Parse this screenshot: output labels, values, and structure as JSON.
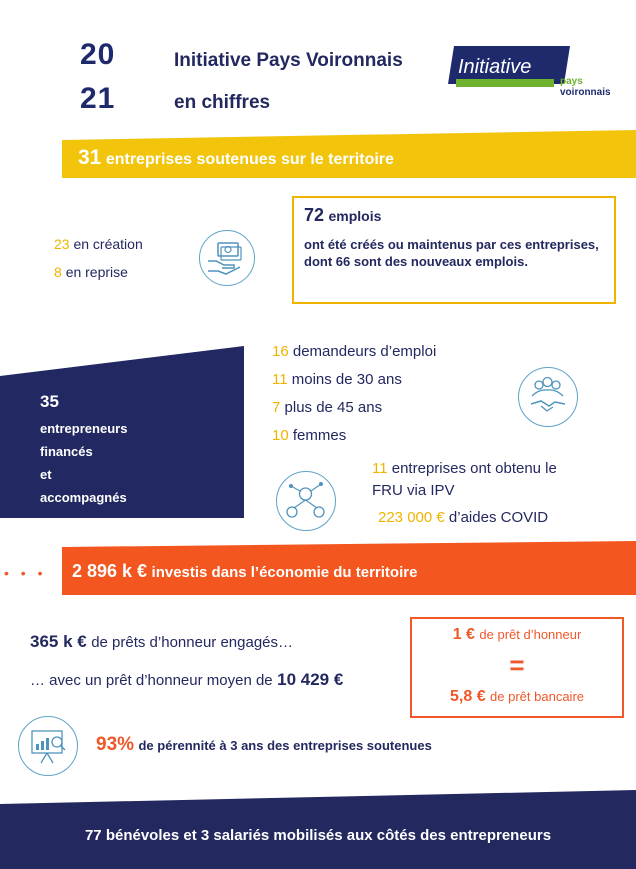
{
  "header": {
    "year_top": "20",
    "year_bottom": "21",
    "title_line1": "Initiative Pays Voironnais",
    "title_line2": "en chiffres"
  },
  "logo": {
    "word": "Initiative",
    "sub1": "pays",
    "sub2": "voironnais",
    "colors": {
      "navy": "#1f2a6d",
      "green": "#6eb22e"
    }
  },
  "banner1": {
    "value": "31",
    "text": "entreprises soutenues sur le territoire"
  },
  "creation": {
    "value": "23",
    "label": "en création"
  },
  "reprise": {
    "value": "8",
    "label": "en reprise"
  },
  "emplois": {
    "value": "72",
    "label": "emplois",
    "body": "ont été créés ou maintenus par ces entreprises, dont 66 sont des nouveaux emplois."
  },
  "entrepreneurs": {
    "value": "35",
    "line1": "entrepreneurs",
    "line2": "financés",
    "line3": "et",
    "line4": "accompagnés"
  },
  "stats": [
    {
      "value": "16",
      "label": "demandeurs d’emploi"
    },
    {
      "value": "11",
      "label": "moins de 30 ans"
    },
    {
      "value": "7",
      "label": "plus de 45 ans"
    },
    {
      "value": "10",
      "label": "femmes"
    }
  ],
  "fru": {
    "value": "11",
    "line1": "entreprises ont obtenu le",
    "line2": "FRU via IPV",
    "amount": "223 000 €",
    "amount_label": "d’aides COVID"
  },
  "banner2": {
    "dots": "• • •",
    "value": "2 896 k €",
    "text": "investis dans l’économie du territoire"
  },
  "prets": {
    "value1": "365 k €",
    "label1": "de prêts d’honneur engagés…",
    "prefix2": "… avec un prêt d’honneur moyen de",
    "value2": "10 429 €"
  },
  "ratio": {
    "top_value": "1 €",
    "top_label": "de prêt d’honneur",
    "equals": "=",
    "bottom_value": "5,8 €",
    "bottom_label": "de prêt bancaire"
  },
  "perennite": {
    "value": "93%",
    "label": "de pérennité à 3 ans des entreprises soutenues"
  },
  "footer": {
    "text": "77 bénévoles et 3 salariés mobilisés aux côtés des entrepreneurs"
  },
  "icons": [
    "money-hand-icon",
    "team-handshake-icon",
    "network-people-icon",
    "chart-presentation-icon"
  ]
}
